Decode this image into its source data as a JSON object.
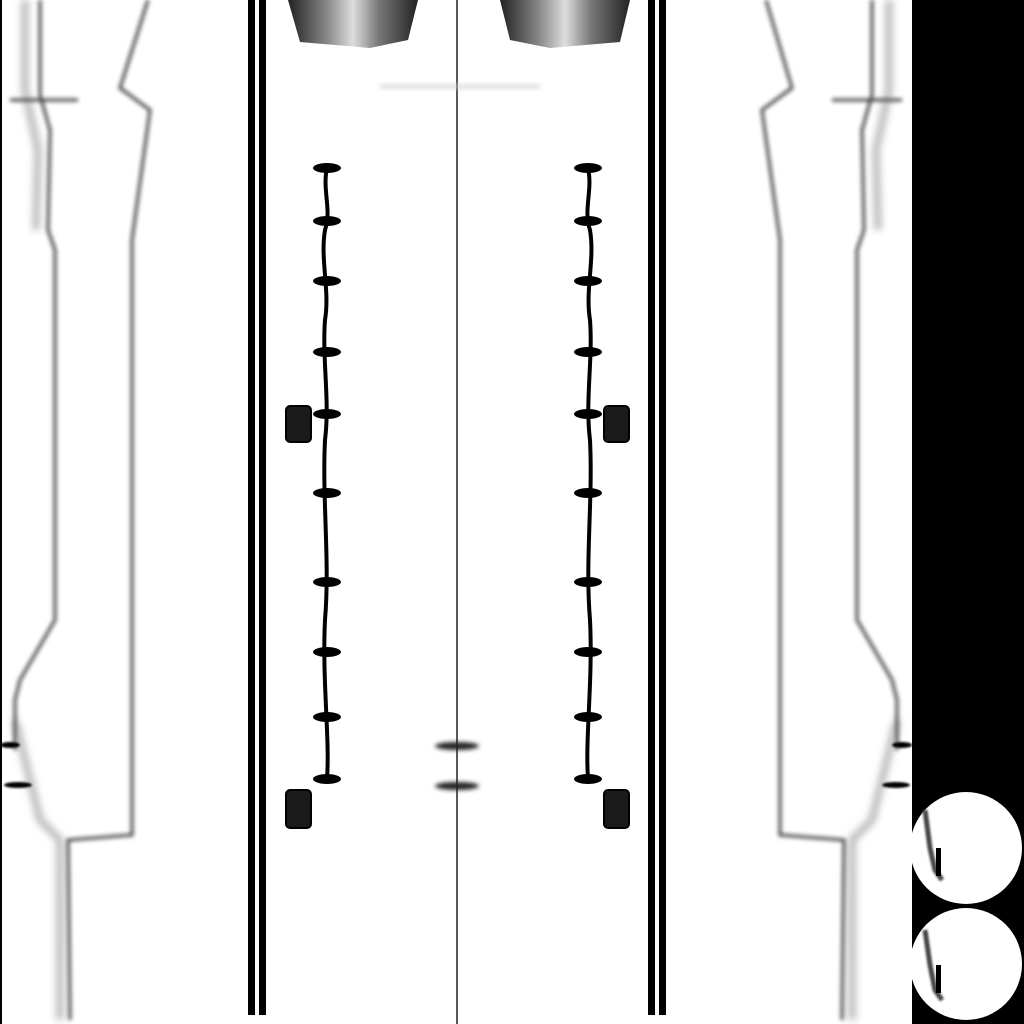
{
  "texture": {
    "background_color": "#000000",
    "fabric_color": "#ffffff",
    "stitch_color": "#000000",
    "shade_color": "#555555",
    "bottom_stitch_count": 10,
    "tab_count_per_front": 2,
    "patch_count": 2
  }
}
